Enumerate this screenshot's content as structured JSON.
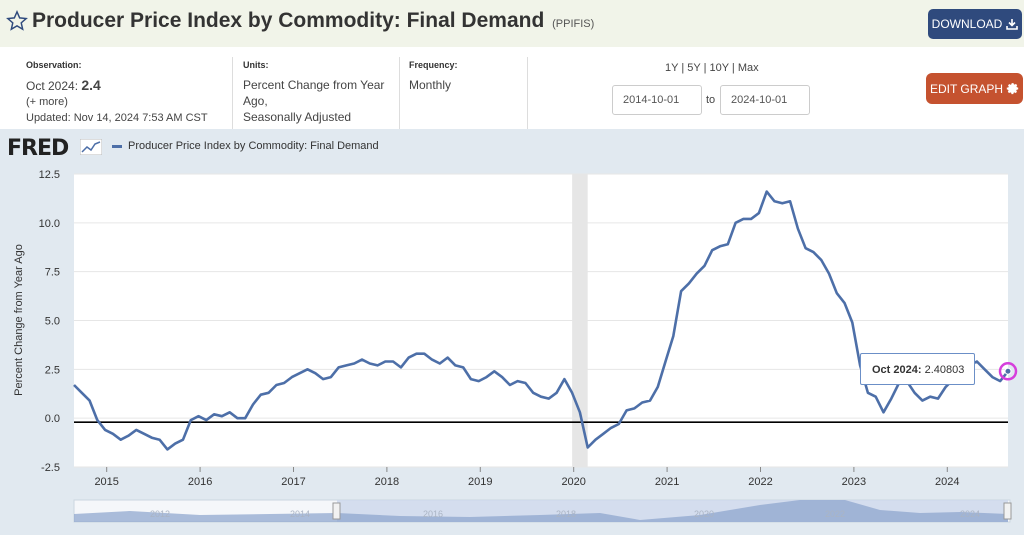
{
  "header": {
    "title": "Producer Price Index by Commodity: Final Demand",
    "series_code": "(PPIFIS)",
    "download_label": "DOWNLOAD"
  },
  "meta": {
    "observation_label": "Observation:",
    "observation_period": "Oct 2024:",
    "observation_value": "2.4",
    "more": "(+ more)",
    "updated": "Updated: Nov 14, 2024 7:53 AM CST",
    "units_label": "Units:",
    "units_line1": "Percent Change from Year",
    "units_line2": "Ago,",
    "units_line3": "Seasonally Adjusted",
    "frequency_label": "Frequency:",
    "frequency": "Monthly"
  },
  "controls": {
    "range_1y": "1Y",
    "range_5y": "5Y",
    "range_10y": "10Y",
    "range_max": "Max",
    "start_date": "2014-10-01",
    "to_label": "to",
    "end_date": "2024-10-01",
    "edit_label": "EDIT GRAPH"
  },
  "colors": {
    "line": "#4d6fa8",
    "accent_download": "#2f4a7d",
    "accent_edit": "#c5522f",
    "highlight": "#d63fdc"
  },
  "logo": "FRED",
  "tooltip": {
    "label": "Oct 2024:",
    "value": "2.40803"
  },
  "chart_data": {
    "type": "line",
    "legend": "Producer Price Index by Commodity: Final Demand",
    "ylabel": "Percent Change from Year Ago",
    "ylim": [
      -2.5,
      12.5
    ],
    "yticks": [
      "12.5",
      "10.0",
      "7.5",
      "5.0",
      "2.5",
      "0.0",
      "-2.5"
    ],
    "yticks_values": [
      12.5,
      10,
      7.5,
      5,
      2.5,
      0,
      -2.5
    ],
    "xticks": [
      "2015",
      "2016",
      "2017",
      "2018",
      "2019",
      "2020",
      "2021",
      "2022",
      "2023",
      "2024"
    ],
    "recession_shading": [
      "2020-02",
      "2020-04"
    ],
    "navigator_labels": [
      "2012",
      "2014",
      "2016",
      "2018",
      "2020",
      "2022",
      "2024"
    ],
    "series": [
      {
        "name": "Producer Price Index by Commodity: Final Demand",
        "x": [
          "2014-10",
          "2014-11",
          "2014-12",
          "2015-01",
          "2015-02",
          "2015-03",
          "2015-04",
          "2015-05",
          "2015-06",
          "2015-07",
          "2015-08",
          "2015-09",
          "2015-10",
          "2015-11",
          "2015-12",
          "2016-01",
          "2016-02",
          "2016-03",
          "2016-04",
          "2016-05",
          "2016-06",
          "2016-07",
          "2016-08",
          "2016-09",
          "2016-10",
          "2016-11",
          "2016-12",
          "2017-01",
          "2017-02",
          "2017-03",
          "2017-04",
          "2017-05",
          "2017-06",
          "2017-07",
          "2017-08",
          "2017-09",
          "2017-10",
          "2017-11",
          "2017-12",
          "2018-01",
          "2018-02",
          "2018-03",
          "2018-04",
          "2018-05",
          "2018-06",
          "2018-07",
          "2018-08",
          "2018-09",
          "2018-10",
          "2018-11",
          "2018-12",
          "2019-01",
          "2019-02",
          "2019-03",
          "2019-04",
          "2019-05",
          "2019-06",
          "2019-07",
          "2019-08",
          "2019-09",
          "2019-10",
          "2019-11",
          "2019-12",
          "2020-01",
          "2020-02",
          "2020-03",
          "2020-04",
          "2020-05",
          "2020-06",
          "2020-07",
          "2020-08",
          "2020-09",
          "2020-10",
          "2020-11",
          "2020-12",
          "2021-01",
          "2021-02",
          "2021-03",
          "2021-04",
          "2021-05",
          "2021-06",
          "2021-07",
          "2021-08",
          "2021-09",
          "2021-10",
          "2021-11",
          "2021-12",
          "2022-01",
          "2022-02",
          "2022-03",
          "2022-04",
          "2022-05",
          "2022-06",
          "2022-07",
          "2022-08",
          "2022-09",
          "2022-10",
          "2022-11",
          "2022-12",
          "2023-01",
          "2023-02",
          "2023-03",
          "2023-04",
          "2023-05",
          "2023-06",
          "2023-07",
          "2023-08",
          "2023-09",
          "2023-10",
          "2023-11",
          "2023-12",
          "2024-01",
          "2024-02",
          "2024-03",
          "2024-04",
          "2024-05",
          "2024-06",
          "2024-07",
          "2024-08",
          "2024-09",
          "2024-10"
        ],
        "y": [
          1.7,
          1.3,
          0.9,
          -0.1,
          -0.6,
          -0.8,
          -1.1,
          -0.9,
          -0.6,
          -0.8,
          -1.0,
          -1.1,
          -1.6,
          -1.3,
          -1.1,
          -0.1,
          0.1,
          -0.1,
          0.2,
          0.1,
          0.3,
          0.0,
          0.0,
          0.7,
          1.2,
          1.3,
          1.7,
          1.8,
          2.1,
          2.3,
          2.5,
          2.3,
          2.0,
          2.1,
          2.6,
          2.7,
          2.8,
          3.0,
          2.8,
          2.7,
          2.9,
          2.9,
          2.6,
          3.1,
          3.3,
          3.3,
          3.0,
          2.8,
          3.1,
          2.7,
          2.6,
          2.0,
          1.9,
          2.1,
          2.4,
          2.1,
          1.7,
          1.9,
          1.8,
          1.3,
          1.1,
          1.0,
          1.3,
          2.0,
          1.3,
          0.3,
          -1.5,
          -1.1,
          -0.8,
          -0.5,
          -0.3,
          0.4,
          0.5,
          0.8,
          0.9,
          1.6,
          2.9,
          4.2,
          6.5,
          6.9,
          7.4,
          7.8,
          8.6,
          8.8,
          8.9,
          10.0,
          10.2,
          10.2,
          10.5,
          11.6,
          11.1,
          11.0,
          11.1,
          9.7,
          8.7,
          8.5,
          8.1,
          7.4,
          6.4,
          5.9,
          4.9,
          2.7,
          1.3,
          1.1,
          0.3,
          1.0,
          1.8,
          1.9,
          1.3,
          0.9,
          1.1,
          1.0,
          1.6,
          2.0,
          2.3,
          2.7,
          2.9,
          2.5,
          2.1,
          1.9,
          2.4
        ]
      }
    ]
  }
}
